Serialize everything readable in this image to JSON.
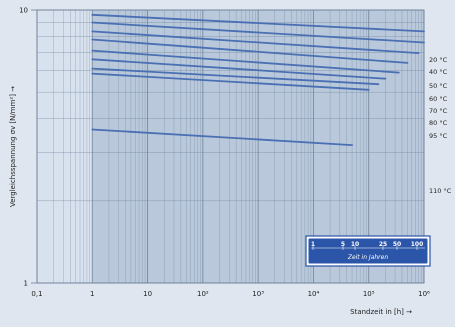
{
  "chart_data": {
    "type": "line",
    "title": "",
    "xlabel": "Standzeit in [h] →",
    "ylabel": "Vergleichsspannung σv [N/mm²] →",
    "xscale": "log",
    "yscale": "log",
    "xlim": [
      0.1,
      1000000
    ],
    "ylim": [
      1,
      10
    ],
    "x_ticks": [
      {
        "value": 0.1,
        "label": "0,1"
      },
      {
        "value": 1,
        "label": "1"
      },
      {
        "value": 10,
        "label": "10"
      },
      {
        "value": 100,
        "label": "10²"
      },
      {
        "value": 1000,
        "label": "10³"
      },
      {
        "value": 10000,
        "label": "10⁴"
      },
      {
        "value": 100000,
        "label": "10⁵"
      },
      {
        "value": 1000000,
        "label": "10⁶"
      }
    ],
    "y_ticks": [
      {
        "value": 1,
        "label": "1"
      },
      {
        "value": 10,
        "label": "10"
      }
    ],
    "grid": true,
    "series": [
      {
        "name": "20 °C",
        "x": [
          1,
          1000000
        ],
        "y": [
          9.6,
          8.35
        ]
      },
      {
        "name": "40 °C",
        "x": [
          1,
          1000000
        ],
        "y": [
          9.0,
          7.6
        ]
      },
      {
        "name": "50 °C",
        "x": [
          1,
          800000
        ],
        "y": [
          8.35,
          6.95
        ]
      },
      {
        "name": "60 °C",
        "x": [
          1,
          500000
        ],
        "y": [
          7.8,
          6.4
        ]
      },
      {
        "name": "70 °C",
        "x": [
          1,
          350000
        ],
        "y": [
          7.1,
          5.9
        ]
      },
      {
        "name": "80 °C",
        "x": [
          1,
          200000
        ],
        "y": [
          6.6,
          5.6
        ]
      },
      {
        "name": "95 °C",
        "x": [
          1,
          150000
        ],
        "y": [
          6.1,
          5.35
        ]
      },
      {
        "name": "",
        "x": [
          1,
          100000
        ],
        "y": [
          5.85,
          5.1
        ]
      },
      {
        "name": "110 °C",
        "x": [
          1,
          50000
        ],
        "y": [
          3.65,
          3.2
        ]
      }
    ],
    "series_labels": [
      "20 °C",
      "40 °C",
      "50 °C",
      "60 °C",
      "70 °C",
      "80 °C",
      "95 °C",
      "110 °C"
    ],
    "time_scale": {
      "title": "Zeit in Jahren",
      "ticks": [
        "1",
        "5",
        "10",
        "25",
        "50",
        "100"
      ]
    },
    "colors": {
      "plot_bg": "#b9c9db",
      "band_light": "#d8e2ee",
      "grid": "#6b7f98",
      "line": "#4a6fb3",
      "text": "#222222",
      "box_border": "#2b55a8"
    }
  }
}
